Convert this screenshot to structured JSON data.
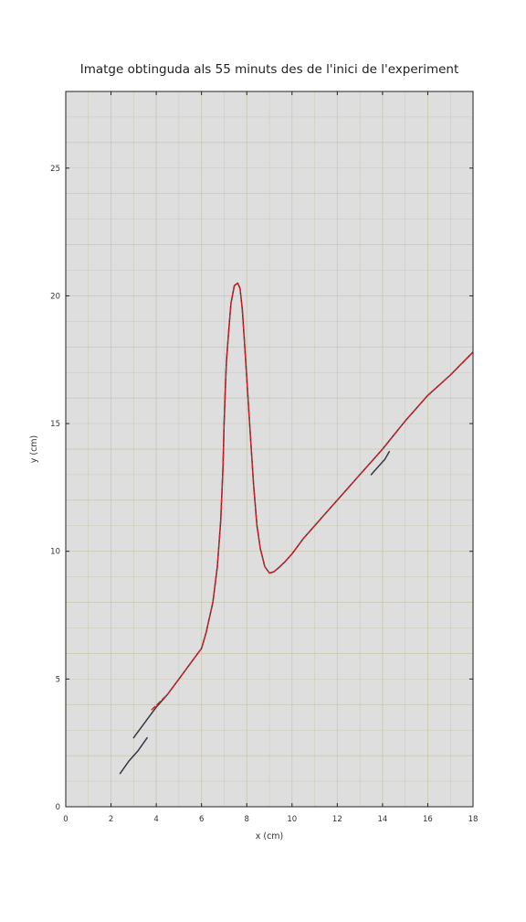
{
  "chart_data": {
    "type": "line",
    "title": "Imatge obtinguda als 55 minuts des de l'inici de l'experiment",
    "xlabel": "x (cm)",
    "ylabel": "y (cm)",
    "xlim": [
      0,
      18
    ],
    "ylim": [
      0,
      28
    ],
    "xticks": [
      "0",
      "2",
      "4",
      "6",
      "8",
      "10",
      "12",
      "14",
      "16",
      "18"
    ],
    "yticks": [
      "0",
      "5",
      "10",
      "15",
      "20",
      "25"
    ],
    "background": "photo of graph paper",
    "colors": {
      "fit": "#e41a1c",
      "trace": "#1a1a2e",
      "paper": "#dedede",
      "grid": "#c8c6a8"
    },
    "series": [
      {
        "style": "solid dark trace",
        "x": [
          3.0,
          3.5,
          4.0,
          4.5,
          5.0,
          5.5,
          6.0,
          6.2,
          6.5,
          6.7,
          6.85,
          6.95,
          7.0,
          7.05,
          7.1,
          7.2,
          7.3,
          7.45,
          7.6,
          7.7,
          7.8,
          7.9,
          8.0,
          8.15,
          8.3,
          8.45,
          8.6,
          8.8,
          9.0,
          9.2,
          9.4,
          9.7,
          10.0,
          10.5,
          11.0,
          11.5,
          12.0,
          12.5,
          13.0,
          13.5,
          14.0,
          14.5,
          15.0,
          15.5,
          16.0,
          16.5,
          17.0,
          17.5,
          18.0
        ],
        "y": [
          2.7,
          3.3,
          3.9,
          4.4,
          5.0,
          5.6,
          6.2,
          6.8,
          8.0,
          9.4,
          11.2,
          13.3,
          15.0,
          16.3,
          17.4,
          18.6,
          19.7,
          20.4,
          20.5,
          20.3,
          19.5,
          18.2,
          16.8,
          14.7,
          12.6,
          11.0,
          10.1,
          9.4,
          9.15,
          9.2,
          9.35,
          9.6,
          9.9,
          10.5,
          11.0,
          11.5,
          12.0,
          12.5,
          13.0,
          13.5,
          14.0,
          14.55,
          15.1,
          15.6,
          16.1,
          16.5,
          16.9,
          17.35,
          17.8
        ]
      },
      {
        "style": "dashed red fit",
        "x": [
          3.8,
          4.5,
          5.0,
          5.5,
          6.0,
          6.2,
          6.5,
          6.7,
          6.85,
          6.95,
          7.0,
          7.05,
          7.1,
          7.2,
          7.3,
          7.45,
          7.6,
          7.7,
          7.8,
          7.9,
          8.0,
          8.15,
          8.3,
          8.45,
          8.6,
          8.8,
          9.0,
          9.2,
          9.4,
          9.7,
          10.0,
          10.5,
          11.0,
          11.5,
          12.0,
          12.5,
          13.0,
          13.5,
          14.0,
          14.5,
          15.0,
          15.5,
          16.0,
          16.5,
          17.0,
          17.5,
          18.0
        ],
        "y": [
          3.8,
          4.4,
          5.0,
          5.6,
          6.2,
          6.8,
          8.0,
          9.4,
          11.2,
          13.3,
          15.0,
          16.3,
          17.4,
          18.6,
          19.7,
          20.4,
          20.5,
          20.3,
          19.5,
          18.2,
          16.8,
          14.7,
          12.6,
          11.0,
          10.1,
          9.4,
          9.15,
          9.2,
          9.35,
          9.6,
          9.9,
          10.5,
          11.0,
          11.5,
          12.0,
          12.5,
          13.0,
          13.5,
          14.0,
          14.55,
          15.1,
          15.6,
          16.1,
          16.5,
          16.9,
          17.35,
          17.8
        ]
      },
      {
        "style": "dark stroke",
        "x": [
          2.4,
          2.8,
          3.2,
          3.6
        ],
        "y": [
          1.3,
          1.8,
          2.2,
          2.7
        ]
      },
      {
        "style": "dark stroke",
        "x": [
          13.5,
          13.8,
          14.1,
          14.3
        ],
        "y": [
          13.0,
          13.3,
          13.6,
          13.9
        ]
      }
    ]
  }
}
